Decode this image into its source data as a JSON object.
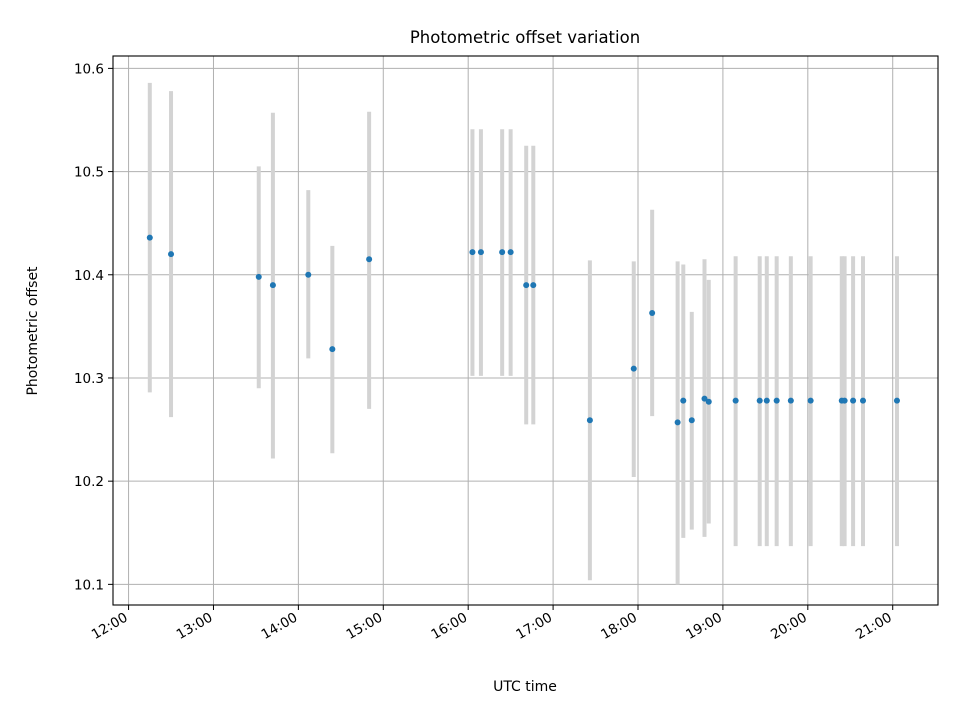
{
  "chart_data": {
    "type": "scatter",
    "title": "Photometric offset variation",
    "xlabel": "UTC time",
    "ylabel": "Photometric offset",
    "xlim": [
      "11:49",
      "21:32"
    ],
    "ylim": [
      10.08,
      10.612
    ],
    "x_ticks": [
      "12:00",
      "13:00",
      "14:00",
      "15:00",
      "16:00",
      "17:00",
      "18:00",
      "19:00",
      "20:00",
      "21:00"
    ],
    "y_ticks": [
      "10.1",
      "10.2",
      "10.3",
      "10.4",
      "10.5",
      "10.6"
    ],
    "grid": true,
    "marker_color": "#1f77b4",
    "errorbar_color": "#d3d3d3",
    "points": [
      {
        "t": "12:15",
        "y": 10.436,
        "lo": 10.286,
        "hi": 10.586
      },
      {
        "t": "12:30",
        "y": 10.42,
        "lo": 10.262,
        "hi": 10.578
      },
      {
        "t": "13:32",
        "y": 10.398,
        "lo": 10.29,
        "hi": 10.505
      },
      {
        "t": "13:42",
        "y": 10.39,
        "lo": 10.222,
        "hi": 10.557
      },
      {
        "t": "14:07",
        "y": 10.4,
        "lo": 10.319,
        "hi": 10.482
      },
      {
        "t": "14:24",
        "y": 10.328,
        "lo": 10.227,
        "hi": 10.428
      },
      {
        "t": "14:50",
        "y": 10.415,
        "lo": 10.27,
        "hi": 10.558
      },
      {
        "t": "16:03",
        "y": 10.422,
        "lo": 10.302,
        "hi": 10.541
      },
      {
        "t": "16:09",
        "y": 10.422,
        "lo": 10.302,
        "hi": 10.541
      },
      {
        "t": "16:24",
        "y": 10.422,
        "lo": 10.302,
        "hi": 10.541
      },
      {
        "t": "16:30",
        "y": 10.422,
        "lo": 10.302,
        "hi": 10.541
      },
      {
        "t": "16:41",
        "y": 10.39,
        "lo": 10.255,
        "hi": 10.525
      },
      {
        "t": "16:46",
        "y": 10.39,
        "lo": 10.255,
        "hi": 10.525
      },
      {
        "t": "17:26",
        "y": 10.259,
        "lo": 10.104,
        "hi": 10.414
      },
      {
        "t": "17:57",
        "y": 10.309,
        "lo": 10.204,
        "hi": 10.413
      },
      {
        "t": "18:10",
        "y": 10.363,
        "lo": 10.263,
        "hi": 10.463
      },
      {
        "t": "18:28",
        "y": 10.257,
        "lo": 10.1,
        "hi": 10.413
      },
      {
        "t": "18:32",
        "y": 10.278,
        "lo": 10.145,
        "hi": 10.41
      },
      {
        "t": "18:38",
        "y": 10.259,
        "lo": 10.153,
        "hi": 10.364
      },
      {
        "t": "18:47",
        "y": 10.28,
        "lo": 10.146,
        "hi": 10.415
      },
      {
        "t": "18:50",
        "y": 10.277,
        "lo": 10.159,
        "hi": 10.395
      },
      {
        "t": "19:09",
        "y": 10.278,
        "lo": 10.137,
        "hi": 10.418
      },
      {
        "t": "19:26",
        "y": 10.278,
        "lo": 10.137,
        "hi": 10.418
      },
      {
        "t": "19:31",
        "y": 10.278,
        "lo": 10.137,
        "hi": 10.418
      },
      {
        "t": "19:38",
        "y": 10.278,
        "lo": 10.137,
        "hi": 10.418
      },
      {
        "t": "19:48",
        "y": 10.278,
        "lo": 10.137,
        "hi": 10.418
      },
      {
        "t": "20:02",
        "y": 10.278,
        "lo": 10.137,
        "hi": 10.418
      },
      {
        "t": "20:24",
        "y": 10.278,
        "lo": 10.137,
        "hi": 10.418
      },
      {
        "t": "20:26",
        "y": 10.278,
        "lo": 10.137,
        "hi": 10.418
      },
      {
        "t": "20:32",
        "y": 10.278,
        "lo": 10.137,
        "hi": 10.418
      },
      {
        "t": "20:39",
        "y": 10.278,
        "lo": 10.137,
        "hi": 10.418
      },
      {
        "t": "21:03",
        "y": 10.278,
        "lo": 10.137,
        "hi": 10.418
      }
    ]
  }
}
